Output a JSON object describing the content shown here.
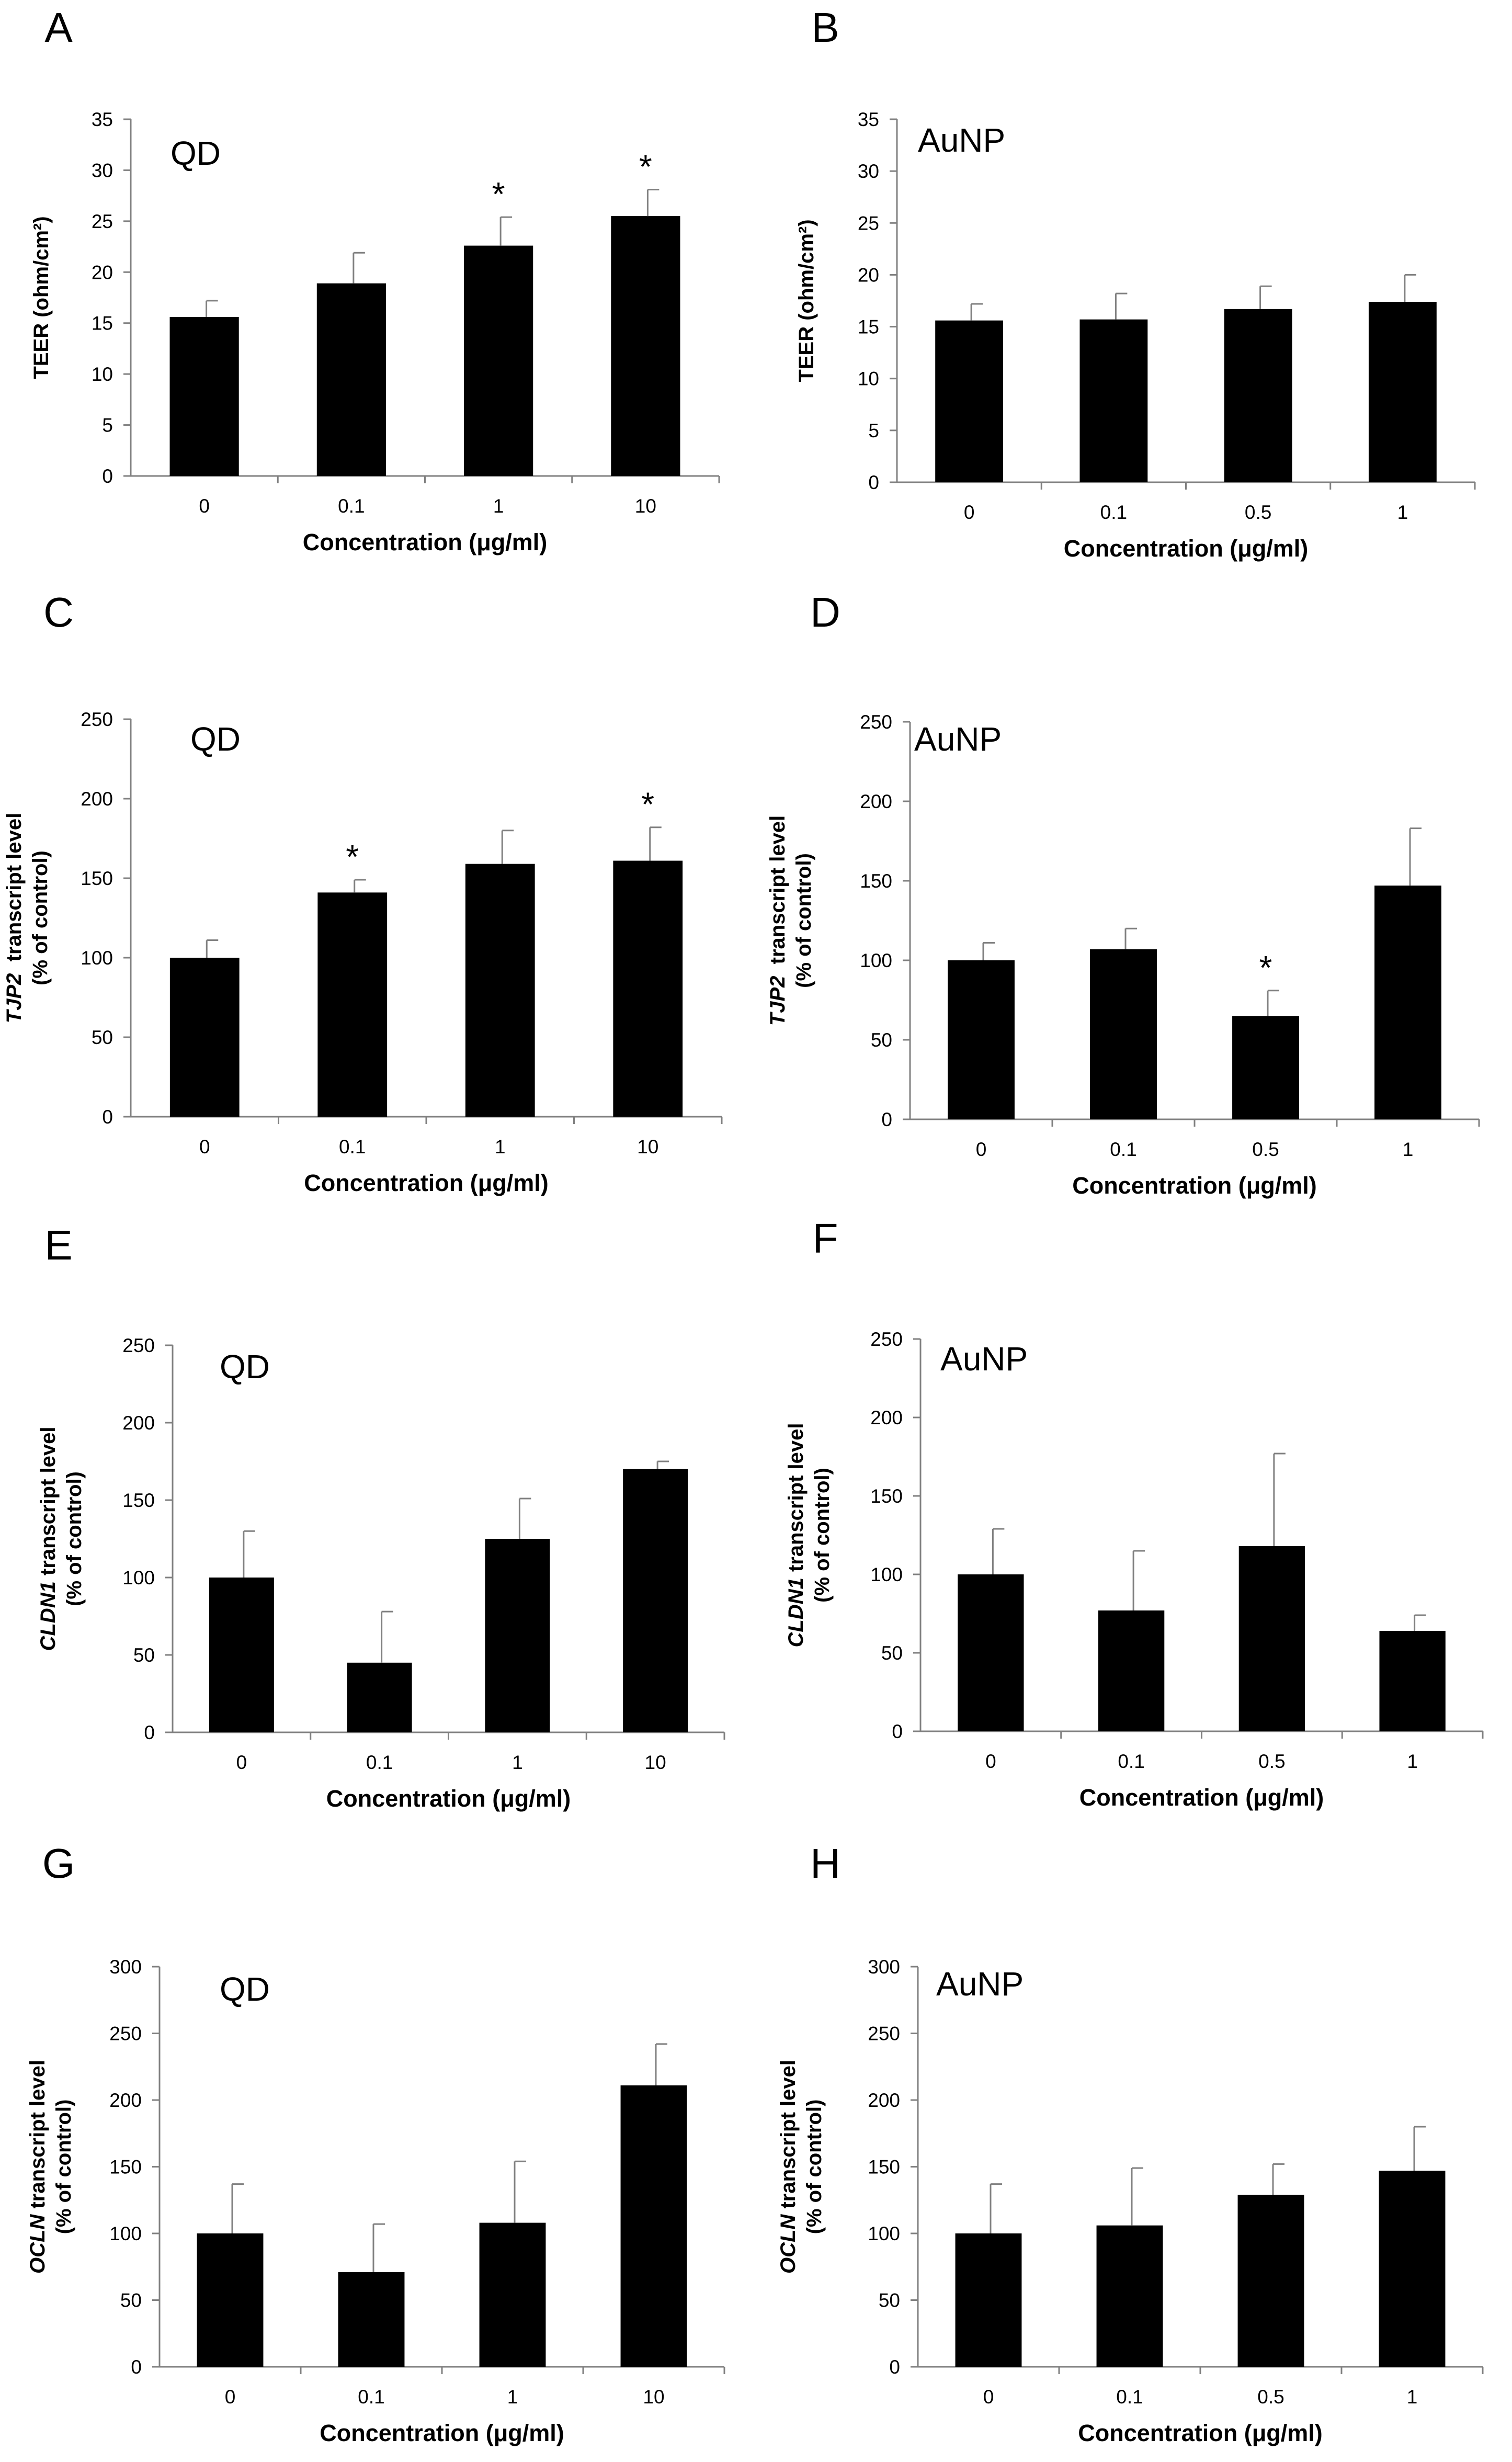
{
  "figure": {
    "bar_color": "#000000",
    "axis_color": "#808080",
    "sig_symbol": "*",
    "xlabel": "Concentration (μg/ml)"
  },
  "chart_data": [
    {
      "panel": "A",
      "title": "QD",
      "type": "bar",
      "categories": [
        "0",
        "0.1",
        "1",
        "10"
      ],
      "values": [
        15.6,
        18.9,
        22.6,
        25.5
      ],
      "errors": [
        1.6,
        3.0,
        2.8,
        2.6
      ],
      "significant": [
        false,
        false,
        true,
        true
      ],
      "ylabel": "TEER (ohm/cm²)",
      "ylabel_parts": [
        {
          "text": "TEER (ohm/cm²)",
          "italic": false
        }
      ],
      "ylim": [
        0,
        35
      ],
      "yticks": [
        0,
        5,
        10,
        15,
        20,
        25,
        30,
        35
      ]
    },
    {
      "panel": "B",
      "title": "AuNP",
      "type": "bar",
      "categories": [
        "0",
        "0.1",
        "0.5",
        "1"
      ],
      "values": [
        15.6,
        15.7,
        16.7,
        17.4
      ],
      "errors": [
        1.6,
        2.5,
        2.2,
        2.6
      ],
      "significant": [
        false,
        false,
        false,
        false
      ],
      "ylabel": "TEER (ohm/cm²)",
      "ylabel_parts": [
        {
          "text": "TEER (ohm/cm²)",
          "italic": false
        }
      ],
      "ylim": [
        0,
        35
      ],
      "yticks": [
        0,
        5,
        10,
        15,
        20,
        25,
        30,
        35
      ]
    },
    {
      "panel": "C",
      "title": "QD",
      "type": "bar",
      "categories": [
        "0",
        "0.1",
        "1",
        "10"
      ],
      "values": [
        100,
        141,
        159,
        161
      ],
      "errors": [
        11,
        8,
        21,
        21
      ],
      "significant": [
        false,
        true,
        false,
        true
      ],
      "ylabel": "TJP2 transcript level (% of control)",
      "ylabel_parts": [
        {
          "text": "TJP2",
          "italic": true
        },
        {
          "text": "  transcript level",
          "italic": false
        }
      ],
      "ylabel2": "(% of control)",
      "ylim": [
        0,
        250
      ],
      "yticks": [
        0,
        50,
        100,
        150,
        200,
        250
      ]
    },
    {
      "panel": "D",
      "title": "AuNP",
      "type": "bar",
      "categories": [
        "0",
        "0.1",
        "0.5",
        "1"
      ],
      "values": [
        100,
        107,
        65,
        147
      ],
      "errors": [
        11,
        13,
        16,
        36
      ],
      "significant": [
        false,
        false,
        true,
        false
      ],
      "ylabel": "TJP2 transcript level (% of control)",
      "ylabel_parts": [
        {
          "text": "TJP2",
          "italic": true
        },
        {
          "text": "  transcript level",
          "italic": false
        }
      ],
      "ylabel2": "(% of control)",
      "ylim": [
        0,
        250
      ],
      "yticks": [
        0,
        50,
        100,
        150,
        200,
        250
      ]
    },
    {
      "panel": "E",
      "title": "QD",
      "type": "bar",
      "categories": [
        "0",
        "0.1",
        "1",
        "10"
      ],
      "values": [
        100,
        45,
        125,
        170
      ],
      "errors": [
        30,
        33,
        26,
        5
      ],
      "significant": [
        false,
        false,
        false,
        false
      ],
      "ylabel": "CLDN1 transcript level (% of control)",
      "ylabel_parts": [
        {
          "text": "CLDN1",
          "italic": true
        },
        {
          "text": " transcript level",
          "italic": false
        }
      ],
      "ylabel2": "(% of control)",
      "ylim": [
        0,
        250
      ],
      "yticks": [
        0,
        50,
        100,
        150,
        200,
        250
      ]
    },
    {
      "panel": "F",
      "title": "AuNP",
      "type": "bar",
      "categories": [
        "0",
        "0.1",
        "0.5",
        "1"
      ],
      "values": [
        100,
        77,
        118,
        64
      ],
      "errors": [
        29,
        38,
        59,
        10
      ],
      "significant": [
        false,
        false,
        false,
        false
      ],
      "ylabel": "CLDN1 transcript level (% of control)",
      "ylabel_parts": [
        {
          "text": "CLDN1",
          "italic": true
        },
        {
          "text": " transcript level",
          "italic": false
        }
      ],
      "ylabel2": "(% of control)",
      "ylim": [
        0,
        250
      ],
      "yticks": [
        0,
        50,
        100,
        150,
        200,
        250
      ]
    },
    {
      "panel": "G",
      "title": "QD",
      "type": "bar",
      "categories": [
        "0",
        "0.1",
        "1",
        "10"
      ],
      "values": [
        100,
        71,
        108,
        211
      ],
      "errors": [
        37,
        36,
        46,
        31
      ],
      "significant": [
        false,
        false,
        false,
        false
      ],
      "ylabel": "OCLN transcript level (% of control)",
      "ylabel_parts": [
        {
          "text": "OCLN",
          "italic": true
        },
        {
          "text": " transcript level",
          "italic": false
        }
      ],
      "ylabel2": "(% of control)",
      "ylim": [
        0,
        300
      ],
      "yticks": [
        0,
        50,
        100,
        150,
        200,
        250,
        300
      ]
    },
    {
      "panel": "H",
      "title": "AuNP",
      "type": "bar",
      "categories": [
        "0",
        "0.1",
        "0.5",
        "1"
      ],
      "values": [
        100,
        106,
        129,
        147
      ],
      "errors": [
        37,
        43,
        23,
        33
      ],
      "significant": [
        false,
        false,
        false,
        false
      ],
      "ylabel": "OCLN transcript level (% of control)",
      "ylabel_parts": [
        {
          "text": "OCLN",
          "italic": true
        },
        {
          "text": " transcript level",
          "italic": false
        }
      ],
      "ylabel2": "(% of control)",
      "ylim": [
        0,
        300
      ],
      "yticks": [
        0,
        50,
        100,
        150,
        200,
        250,
        300
      ]
    }
  ]
}
